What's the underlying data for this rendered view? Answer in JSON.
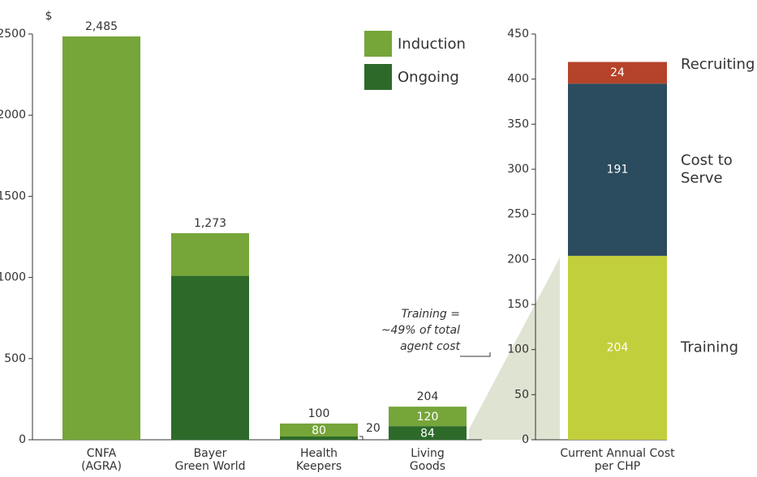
{
  "chart_data": [
    {
      "type": "bar",
      "stacked": true,
      "y_unit": "$",
      "categories": [
        "CNFA\n(AGRA)",
        "Bayer\nGreen World",
        "Health\nKeepers",
        "Living\nGoods"
      ],
      "series": [
        {
          "name": "Ongoing",
          "color": "#2d6a2a",
          "values": [
            0,
            1010,
            20,
            84
          ],
          "value_labels": [
            null,
            null,
            "20",
            "84"
          ]
        },
        {
          "name": "Induction",
          "color": "#76a53a",
          "values": [
            2485,
            263,
            80,
            120
          ],
          "value_labels": [
            null,
            null,
            "80",
            "120"
          ]
        }
      ],
      "totals": [
        2485,
        1273,
        100,
        204
      ],
      "total_labels": [
        "2,485",
        "1,273",
        "100",
        "204"
      ],
      "ylim": [
        0,
        2500
      ],
      "yticks": [
        0,
        500,
        1000,
        1500,
        2000,
        2500
      ],
      "annotation": "Training =\n~49% of total\nagent cost"
    },
    {
      "type": "bar",
      "stacked": true,
      "categories": [
        "Current Annual Cost\nper CHP"
      ],
      "series": [
        {
          "name": "Training",
          "color": "#c2cf3c",
          "values": [
            204
          ]
        },
        {
          "name": "Cost to\nServe",
          "color": "#2b4b5e",
          "values": [
            191
          ]
        },
        {
          "name": "Recruiting",
          "color": "#b5432a",
          "values": [
            24
          ]
        }
      ],
      "ylim": [
        0,
        450
      ],
      "yticks": [
        0,
        50,
        100,
        150,
        200,
        250,
        300,
        350,
        400,
        450
      ]
    }
  ]
}
